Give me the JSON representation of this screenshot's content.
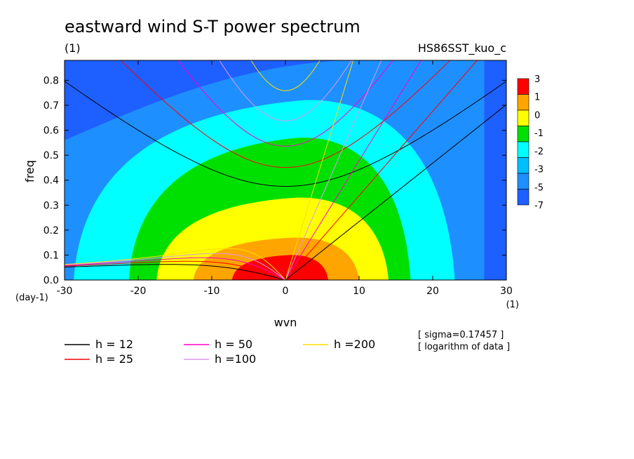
{
  "chart_data": {
    "type": "heatmap",
    "title": "eastward wind S-T power spectrum",
    "subtitle_left": "(1)",
    "subtitle_right": "HS86SST_kuo_c",
    "xlabel": "wvn",
    "ylabel": "freq",
    "x_unit": "(1)",
    "y_unit": "(day-1)",
    "xlim": [
      -30,
      30
    ],
    "ylim": [
      0,
      0.88
    ],
    "x_ticks": [
      -30,
      -20,
      -10,
      0,
      10,
      20,
      30
    ],
    "y_ticks": [
      0.0,
      0.1,
      0.2,
      0.3,
      0.4,
      0.5,
      0.6,
      0.7,
      0.8
    ],
    "colorbar": {
      "levels": [
        "3",
        "1",
        "0",
        "-1",
        "-2",
        "-3",
        "-5",
        "-7"
      ],
      "colors": [
        "#ff0000",
        "#ffa500",
        "#ffff00",
        "#00e000",
        "#00ffff",
        "#00bfff",
        "#1e8fff",
        "#1e5fff"
      ]
    },
    "field": {
      "description_scale": "logarithm",
      "peak": {
        "x": 0,
        "y": 0.0
      },
      "contour_levels": [
        {
          "value": 1,
          "color": "#ff0000",
          "half_width_x": 5.8,
          "top_y": 0.1
        },
        {
          "value": 0,
          "color": "#ffa500",
          "half_width_x": 10,
          "top_y": 0.17
        },
        {
          "value": -1,
          "color": "#ffff00",
          "half_width_x": 14,
          "top_y": 0.33
        },
        {
          "value": -2,
          "color": "#00e000",
          "half_width_x": 17,
          "top_y": 0.57
        },
        {
          "value": -3,
          "color": "#00ffff",
          "half_width_x": 23,
          "top_y": 0.72
        }
      ]
    },
    "dispersion_curves": [
      {
        "name": "h = 12",
        "h": 12,
        "color": "#000000"
      },
      {
        "name": "h = 25",
        "h": 25,
        "color": "#ff0000"
      },
      {
        "name": "h = 50",
        "h": 50,
        "color": "#ff00cc"
      },
      {
        "name": "h =100",
        "h": 100,
        "color": "#dd99ee"
      },
      {
        "name": "h =200",
        "h": 200,
        "color": "#ffdd00"
      }
    ],
    "notes": [
      "[ sigma=0.17457 ]",
      "[ logarithm of data ]"
    ],
    "legend_placement": "bottom",
    "grid": false
  }
}
